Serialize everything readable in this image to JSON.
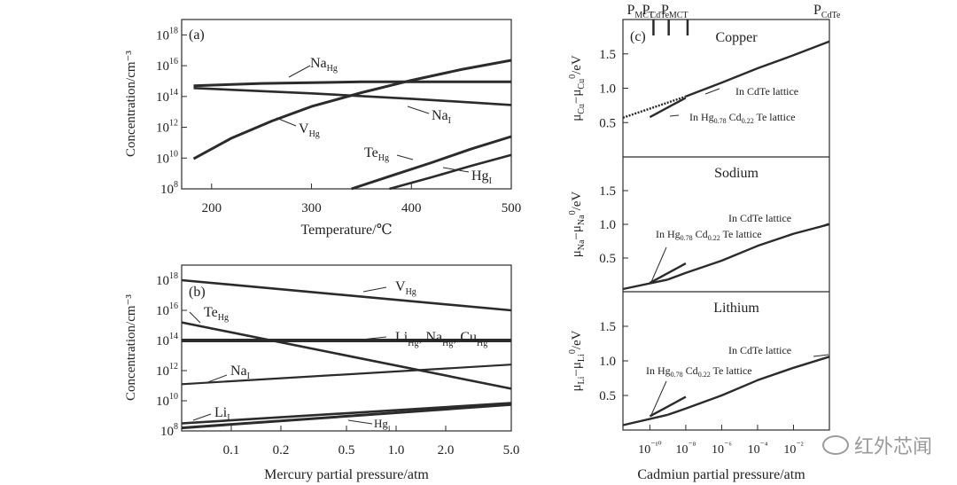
{
  "chart_data": [
    {
      "type": "line",
      "panel_label": "(a)",
      "xlabel": "Temperature/℃",
      "ylabel": "Concentration/cm⁻³",
      "xlim": [
        170,
        500
      ],
      "ylim": [
        8,
        19
      ],
      "y_scale": "log10",
      "xticks": [
        200,
        300,
        400,
        500
      ],
      "yticks": [
        8,
        10,
        12,
        14,
        16,
        18
      ],
      "series": [
        {
          "name": "Na_Hg",
          "label": "Na",
          "sub": "Hg",
          "x": [
            182,
            250,
            350,
            500
          ],
          "y": [
            14.7,
            14.85,
            14.95,
            14.95
          ]
        },
        {
          "name": "Na_I",
          "label": "Na",
          "sub": "I",
          "x": [
            182,
            300,
            400,
            500
          ],
          "y": [
            14.55,
            14.2,
            13.85,
            13.45
          ]
        },
        {
          "name": "V_Hg",
          "label": "V",
          "sub": "Hg",
          "x": [
            182,
            220,
            260,
            300,
            350,
            400,
            450,
            500
          ],
          "y": [
            9.95,
            11.3,
            12.4,
            13.35,
            14.25,
            15.05,
            15.75,
            16.35
          ]
        },
        {
          "name": "Te_Hg",
          "label": "Te",
          "sub": "Hg",
          "x": [
            340,
            380,
            420,
            460,
            500
          ],
          "y": [
            8.0,
            8.85,
            9.7,
            10.6,
            11.4
          ]
        },
        {
          "name": "Hg_I",
          "label": "Hg",
          "sub": "I",
          "x": [
            378,
            420,
            460,
            500
          ],
          "y": [
            8.0,
            8.75,
            9.5,
            10.2
          ]
        }
      ]
    },
    {
      "type": "line",
      "panel_label": "(b)",
      "xlabel": "Mercury partial pressure/atm",
      "ylabel": "Concentration/cm⁻³",
      "x_scale": "log10",
      "xlim": [
        0.05,
        5.0
      ],
      "ylim": [
        8,
        19
      ],
      "y_scale": "log10",
      "xticks": [
        0.1,
        0.2,
        0.5,
        1.0,
        2.0,
        5.0
      ],
      "xtick_labels": [
        "0.1",
        "0.2",
        "0.5",
        "1.0",
        "2.0",
        "5.0"
      ],
      "yticks": [
        8,
        10,
        12,
        14,
        16,
        18
      ],
      "series": [
        {
          "name": "V_Hg",
          "label": "V",
          "sub": "Hg",
          "x": [
            0.05,
            5.0
          ],
          "y": [
            18.0,
            16.0
          ]
        },
        {
          "name": "Te_Hg",
          "label": "Te",
          "sub": "Hg",
          "x": [
            0.05,
            5.0
          ],
          "y": [
            15.2,
            10.8
          ]
        },
        {
          "name": "Li_Hg, Na_Hg, Cu_Hg",
          "label": "Li_Hg, Na_Hg, Cu_Hg",
          "x": [
            0.05,
            5.0
          ],
          "y": [
            14.0,
            14.0
          ]
        },
        {
          "name": "Na_I",
          "label": "Na",
          "sub": "I",
          "x": [
            0.05,
            5.0
          ],
          "y": [
            11.1,
            12.4
          ]
        },
        {
          "name": "Li_I",
          "label": "Li",
          "sub": "I",
          "x": [
            0.05,
            5.0
          ],
          "y": [
            8.5,
            9.85
          ]
        },
        {
          "name": "Hg_I",
          "label": "Hg",
          "sub": "I",
          "x": [
            0.05,
            5.0
          ],
          "y": [
            8.2,
            9.75
          ]
        }
      ]
    },
    {
      "type": "line",
      "panel_label": "(c)",
      "xlabel": "Cadmiun partial pressure/atm",
      "x_scale": "log10",
      "xlim": [
        -11.5,
        0
      ],
      "xticks": [
        -10,
        -8,
        -6,
        -4,
        -2
      ],
      "xtick_labels": [
        "10⁻¹⁰",
        "10⁻⁸",
        "10⁻⁶",
        "10⁻⁴",
        "10⁻²"
      ],
      "top_markers": [
        {
          "text": "P",
          "sub": "MCT",
          "x": -9.8
        },
        {
          "text": "P",
          "sub": "CdTe",
          "x": -8.95
        },
        {
          "text": "P",
          "sub": "MCT",
          "x": -7.9
        },
        {
          "text": "P",
          "sub": "CdTe",
          "x": 0
        }
      ],
      "subplots": [
        {
          "title": "Copper",
          "ylabel": "μCu−μCu0/eV",
          "ylim": [
            0,
            2.0
          ],
          "yticks": [
            0.5,
            1.0,
            1.5
          ],
          "series": [
            {
              "name": "In CdTe lattice",
              "x": [
                -11.5,
                -8,
                -6,
                -4,
                -2,
                0
              ],
              "y": [
                0.57,
                0.88,
                1.08,
                1.29,
                1.48,
                1.68
              ]
            },
            {
              "name": "In Hg0.78 Cd0.22 Te lattice",
              "x": [
                -10,
                -8
              ],
              "y": [
                0.58,
                0.86
              ]
            }
          ],
          "annotations": [
            "In CdTe lattice",
            "In Hg0.78 Cd0.22 Te lattice"
          ]
        },
        {
          "title": "Sodium",
          "ylabel": "μNa−μNa0/eV",
          "ylim": [
            0,
            2.0
          ],
          "yticks": [
            0.5,
            1.0,
            1.5
          ],
          "series": [
            {
              "name": "In CdTe lattice",
              "x": [
                -11.5,
                -9,
                -8,
                -6,
                -4,
                -2,
                0
              ],
              "y": [
                0.04,
                0.18,
                0.28,
                0.46,
                0.68,
                0.86,
                1.0
              ]
            },
            {
              "name": "In Hg0.78 Cd0.22 Te lattice",
              "x": [
                -10,
                -8
              ],
              "y": [
                0.13,
                0.42
              ]
            }
          ],
          "annotations": [
            "In CdTe lattice",
            "In Hg0.78 Cd0.22 Te lattice"
          ]
        },
        {
          "title": "Lithium",
          "ylabel": "μLi−μLi0/eV",
          "ylim": [
            0,
            2.0
          ],
          "yticks": [
            0.5,
            1.0,
            1.5
          ],
          "series": [
            {
              "name": "In CdTe lattice",
              "x": [
                -11.5,
                -9,
                -8,
                -6,
                -4,
                -2,
                0
              ],
              "y": [
                0.07,
                0.22,
                0.31,
                0.5,
                0.72,
                0.9,
                1.06
              ]
            },
            {
              "name": "In Hg0.78 Cd0.22 Te lattice",
              "x": [
                -10,
                -8
              ],
              "y": [
                0.2,
                0.48
              ]
            }
          ],
          "annotations": [
            "In CdTe lattice",
            "In Hg0.78 Cd0.22 Te lattice"
          ]
        }
      ]
    }
  ],
  "watermark": "红外芯闻"
}
